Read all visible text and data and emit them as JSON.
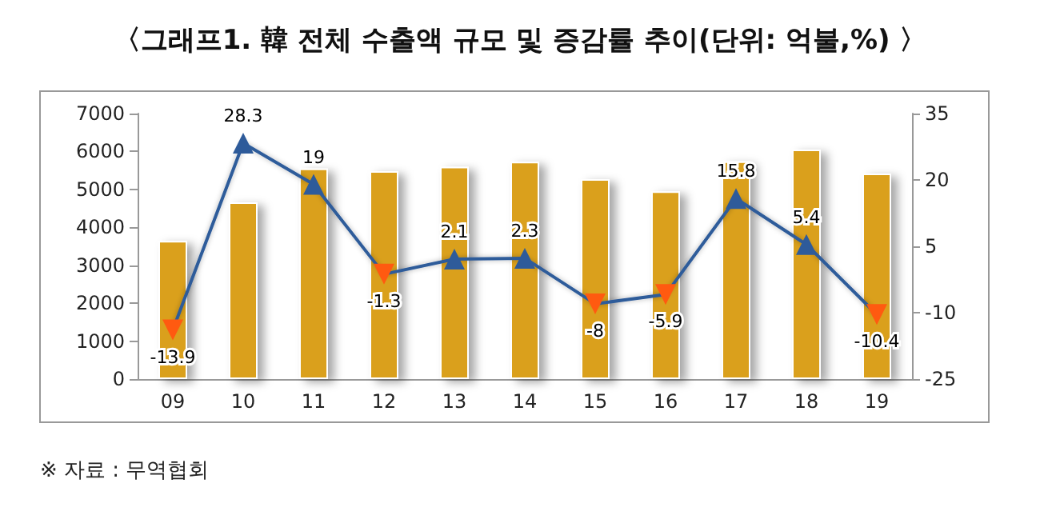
{
  "chart_data": {
    "type": "bar",
    "title": "〈그래프1. 韓 전체 수출액 규모 및 증감률 추이(단위: 억불,%) 〉",
    "categories": [
      "09",
      "10",
      "11",
      "12",
      "13",
      "14",
      "15",
      "16",
      "17",
      "18",
      "19"
    ],
    "series": [
      {
        "color": "#daa01a",
        "values": [
          3640,
          4660,
          5550,
          5480,
          5600,
          5730,
          5270,
          4950,
          5740,
          6050,
          5420
        ]
      },
      {
        "type": "line",
        "axis": "y2",
        "color": "#2e5b9a",
        "colors": [
          "#ff5a10",
          "#2e5b9a",
          "#2e5b9a",
          "#ff5a10",
          "#2e5b9a",
          "#2e5b9a",
          "#ff5a10",
          "#ff5a10",
          "#2e5b9a",
          "#2e5b9a",
          "#ff5a10"
        ],
        "values": [
          -13.9,
          28.3,
          19,
          -1.3,
          2.1,
          2.3,
          -8,
          -5.9,
          15.8,
          5.4,
          -10.4
        ],
        "data_labels": true,
        "marker": "triangle"
      }
    ],
    "ylim": [
      0,
      7000
    ],
    "yticks": [
      0,
      1000,
      2000,
      3000,
      4000,
      5000,
      6000,
      7000
    ],
    "y2lim": [
      -25,
      35
    ],
    "y2ticks": [
      -25,
      -10,
      5,
      20,
      35
    ],
    "grid": false,
    "annotations": [
      "※ 자료 : 무역협회"
    ]
  }
}
